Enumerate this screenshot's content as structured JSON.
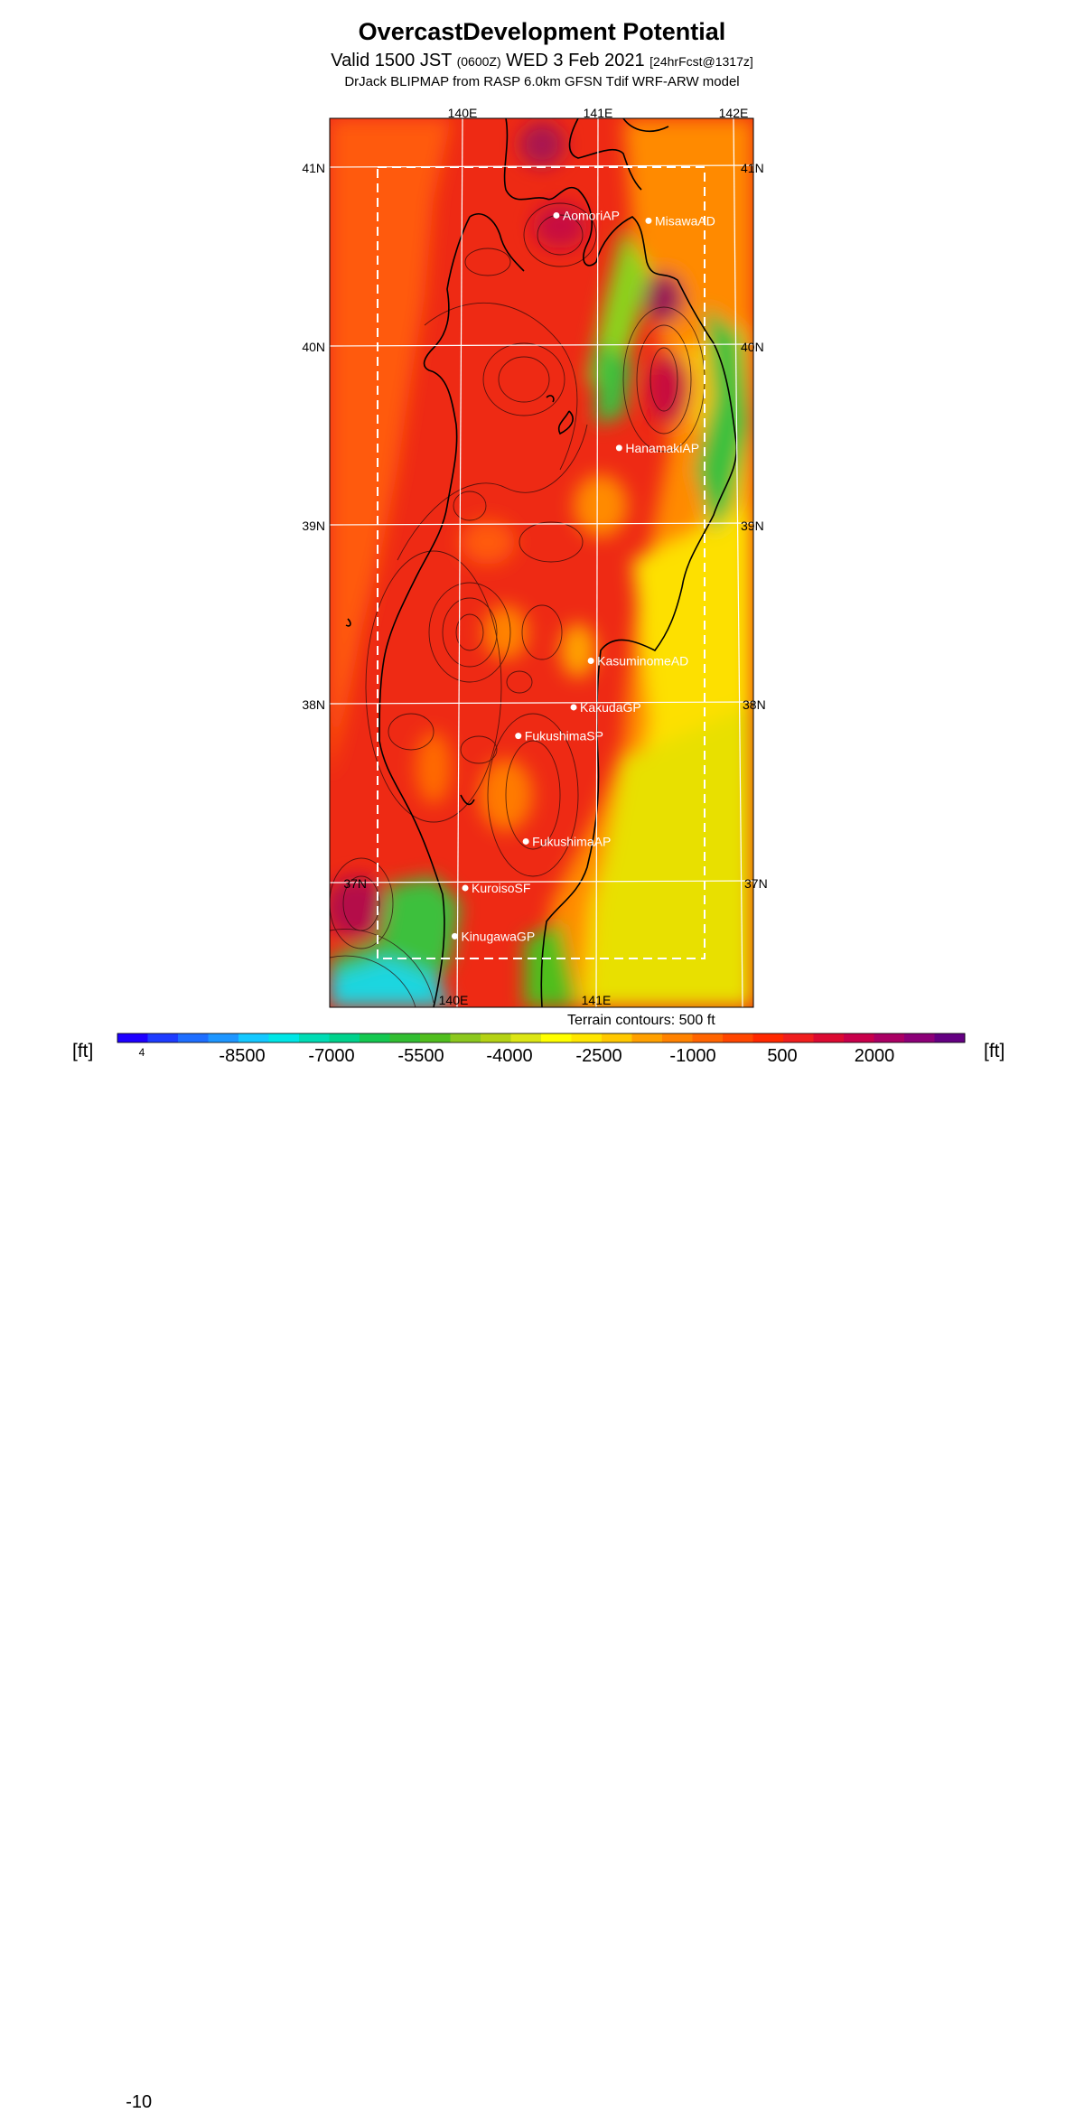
{
  "header": {
    "title": "OvercastDevelopment Potential",
    "valid_prefix": "Valid 1500 JST ",
    "valid_utc": "(0600Z)",
    "valid_date": " WED 3 Feb 2021 ",
    "forecast": "[24hrFcst@1317z]",
    "model": "DrJack BLIPMAP from RASP 6.0km GFSN Tdif WRF-ARW model"
  },
  "map": {
    "lon_labels_top": [
      "140E",
      "141E",
      "142E"
    ],
    "lon_labels_bottom": [
      "140E",
      "141E"
    ],
    "lat_labels_left": [
      "41N",
      "40N",
      "39N",
      "38N",
      "37N"
    ],
    "lat_labels_right": [
      "41N",
      "40N",
      "39N",
      "38N",
      "37N"
    ],
    "stations": [
      {
        "name": "AomoriAP",
        "lat": 40.73,
        "lon": 140.69
      },
      {
        "name": "MisawaAD",
        "lat": 40.7,
        "lon": 141.37
      },
      {
        "name": "HanamakiAP",
        "lat": 39.43,
        "lon": 141.14
      },
      {
        "name": "KasuminomeAD",
        "lat": 38.24,
        "lon": 140.92
      },
      {
        "name": "KakudaGP",
        "lat": 37.98,
        "lon": 140.79
      },
      {
        "name": "FukushimaSP",
        "lat": 37.82,
        "lon": 140.38
      },
      {
        "name": "FukushimaAP",
        "lat": 37.23,
        "lon": 140.43
      },
      {
        "name": "KuroisoSF",
        "lat": 36.97,
        "lon": 139.98
      },
      {
        "name": "KinugawaGP",
        "lat": 36.7,
        "lon": 139.9
      }
    ],
    "terrain_note": "Terrain contours: 500 ft"
  },
  "colorbar": {
    "unit_left": "[ft]",
    "unit_right": "[ft]",
    "tick_base": "-10",
    "tick_exp": "4",
    "labels": [
      "-8500",
      "-7000",
      "-5500",
      "-4000",
      "-2500",
      "-1000",
      "500",
      "2000"
    ],
    "colors": [
      "#1e00ff",
      "#1e3cff",
      "#1e6eff",
      "#1e96ff",
      "#14c8ff",
      "#00e6e6",
      "#00dcb4",
      "#00d28c",
      "#14c850",
      "#32be32",
      "#50be1e",
      "#8cc81e",
      "#b4d214",
      "#dce614",
      "#ffff00",
      "#ffe600",
      "#ffc800",
      "#ffa000",
      "#ff8200",
      "#ff6400",
      "#ff4600",
      "#ff2800",
      "#f01e1e",
      "#dc0a32",
      "#c8004b",
      "#aa0064",
      "#8c0078",
      "#640082"
    ]
  },
  "colors": {
    "map_red": "#ee2a14",
    "map_orange": "#ff6a00",
    "map_yellow": "#fde000",
    "map_green": "#3cc03c",
    "map_cyan": "#1fd6e0",
    "map_purple": "#9a1a55"
  }
}
